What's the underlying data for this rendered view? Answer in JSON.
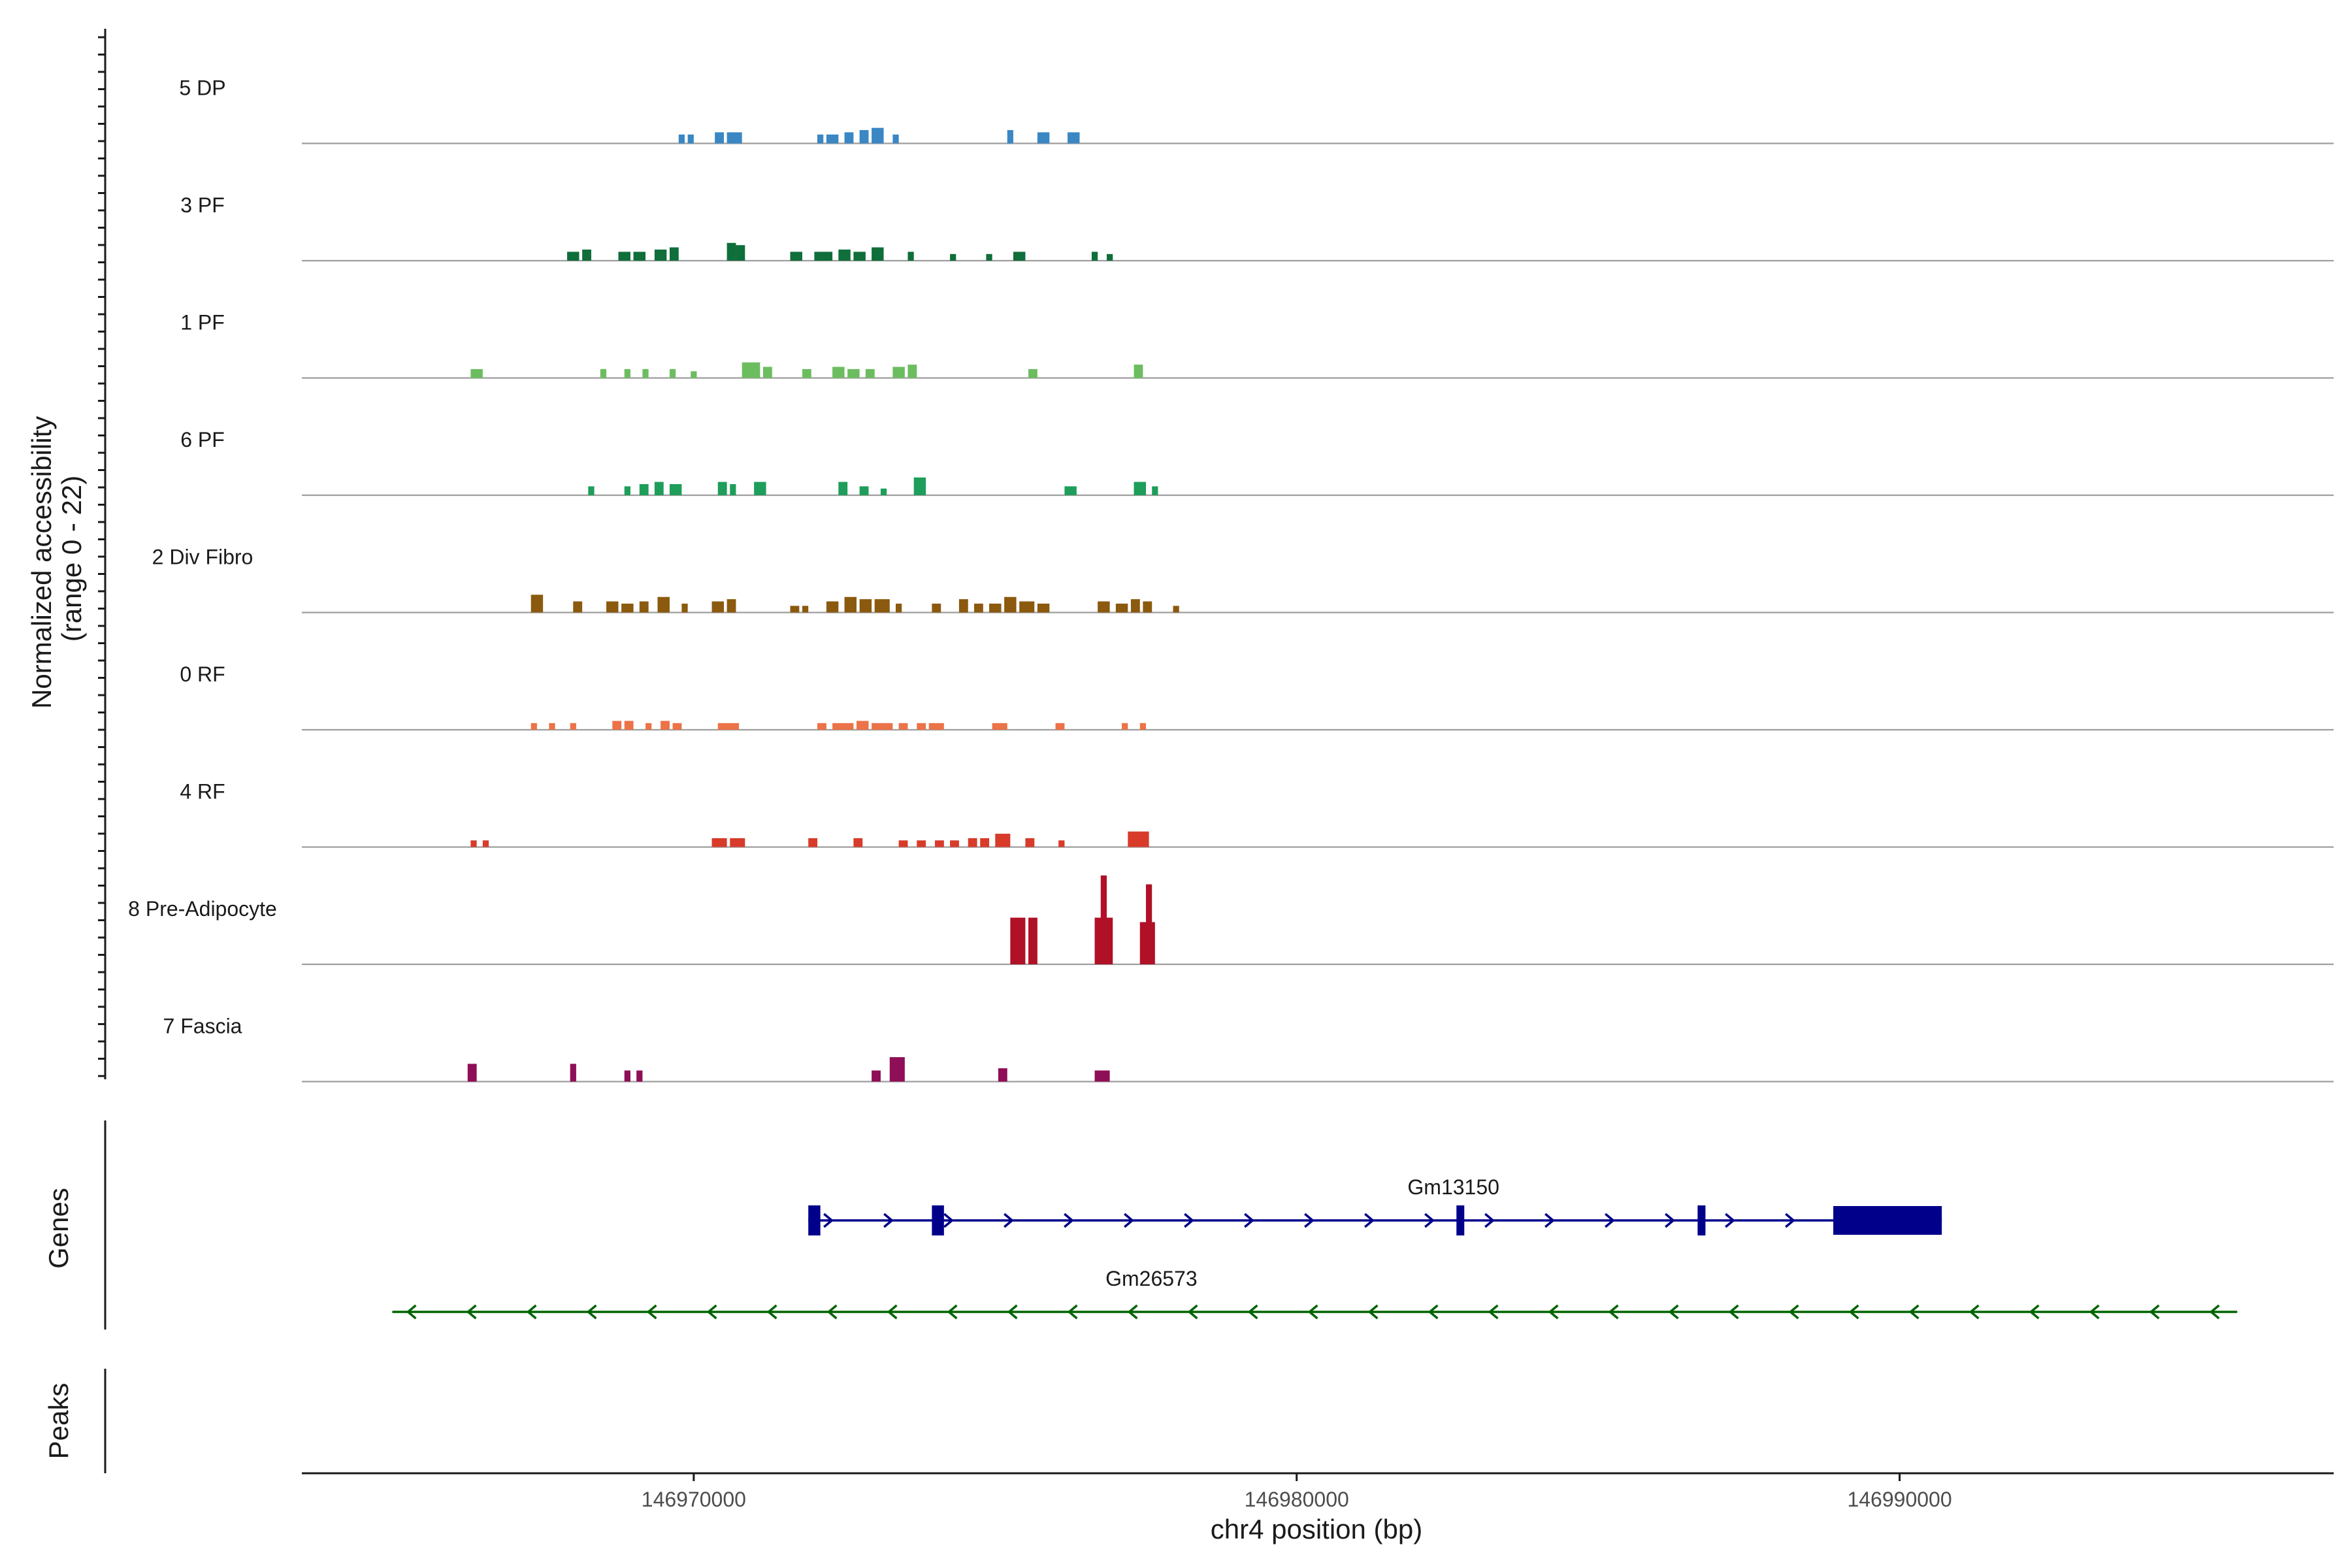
{
  "chart_data": {
    "type": "area",
    "title": "",
    "chromosome": "chr4",
    "xlabel": "chr4 position (bp)",
    "ylabel_line1": "Normalized accessibility",
    "ylabel_line2": "(range 0 - 22)",
    "xlim": [
      146963500,
      146997200
    ],
    "ylim": [
      0,
      22
    ],
    "x_ticks": [
      146970000,
      146980000,
      146990000
    ],
    "x_tick_labels": [
      "146970000",
      "146980000",
      "146990000"
    ],
    "grid": false,
    "legend": "none",
    "panel_labels": {
      "genes": "Genes",
      "peaks": "Peaks"
    },
    "tracks": [
      {
        "label": "5 DP",
        "color": "#3a87c4",
        "peaks": [
          [
            146969750,
            146969850,
            2
          ],
          [
            146969900,
            146970000,
            2
          ],
          [
            146970350,
            146970500,
            2.5
          ],
          [
            146970550,
            146970800,
            2.5
          ],
          [
            146972050,
            146972150,
            2
          ],
          [
            146972200,
            146972400,
            2
          ],
          [
            146972500,
            146972650,
            2.5
          ],
          [
            146972750,
            146972900,
            3
          ],
          [
            146972950,
            146973150,
            3.5
          ],
          [
            146973300,
            146973400,
            2
          ],
          [
            146975200,
            146975300,
            3
          ],
          [
            146975700,
            146975900,
            2.5
          ],
          [
            146976200,
            146976400,
            2.5
          ]
        ]
      },
      {
        "label": "3 PF",
        "color": "#0f6e3a",
        "peaks": [
          [
            146967900,
            146968100,
            2
          ],
          [
            146968150,
            146968300,
            2.5
          ],
          [
            146968750,
            146968950,
            2
          ],
          [
            146969000,
            146969200,
            2
          ],
          [
            146969350,
            146969550,
            2.5
          ],
          [
            146969600,
            146969750,
            3
          ],
          [
            146970550,
            146970700,
            4
          ],
          [
            146970700,
            146970850,
            3.5
          ],
          [
            146971600,
            146971800,
            2
          ],
          [
            146972000,
            146972300,
            2
          ],
          [
            146972400,
            146972600,
            2.5
          ],
          [
            146972650,
            146972850,
            2
          ],
          [
            146972950,
            146973150,
            3
          ],
          [
            146973550,
            146973650,
            2
          ],
          [
            146974250,
            146974350,
            1.5
          ],
          [
            146974850,
            146974950,
            1.5
          ],
          [
            146975300,
            146975500,
            2
          ],
          [
            146976600,
            146976700,
            2
          ],
          [
            146976850,
            146976950,
            1.5
          ]
        ]
      },
      {
        "label": "1 PF",
        "color": "#6cbd5f",
        "peaks": [
          [
            146966300,
            146966500,
            2
          ],
          [
            146968450,
            146968550,
            2
          ],
          [
            146968850,
            146968950,
            2
          ],
          [
            146969150,
            146969250,
            2
          ],
          [
            146969600,
            146969700,
            2
          ],
          [
            146969950,
            146970050,
            1.5
          ],
          [
            146970800,
            146971100,
            3.5
          ],
          [
            146971150,
            146971300,
            2.5
          ],
          [
            146971800,
            146971950,
            2
          ],
          [
            146972300,
            146972500,
            2.5
          ],
          [
            146972550,
            146972750,
            2
          ],
          [
            146972850,
            146973000,
            2
          ],
          [
            146973300,
            146973500,
            2.5
          ],
          [
            146973550,
            146973700,
            3
          ],
          [
            146975550,
            146975700,
            2
          ],
          [
            146977300,
            146977450,
            3
          ]
        ]
      },
      {
        "label": "6 PF",
        "color": "#1e9e5a",
        "peaks": [
          [
            146968250,
            146968350,
            2
          ],
          [
            146968850,
            146968950,
            2
          ],
          [
            146969100,
            146969250,
            2.5
          ],
          [
            146969350,
            146969500,
            3
          ],
          [
            146969600,
            146969800,
            2.5
          ],
          [
            146970400,
            146970550,
            3
          ],
          [
            146970600,
            146970700,
            2.5
          ],
          [
            146971000,
            146971200,
            3
          ],
          [
            146972400,
            146972550,
            3
          ],
          [
            146972750,
            146972900,
            2
          ],
          [
            146973100,
            146973200,
            1.5
          ],
          [
            146973650,
            146973850,
            4
          ],
          [
            146976150,
            146976350,
            2
          ],
          [
            146977300,
            146977500,
            3
          ],
          [
            146977600,
            146977700,
            2
          ]
        ]
      },
      {
        "label": "2 Div Fibro",
        "color": "#8b5a0f",
        "peaks": [
          [
            146967300,
            146967500,
            4
          ],
          [
            146968000,
            146968150,
            2.5
          ],
          [
            146968550,
            146968750,
            2.5
          ],
          [
            146968800,
            146969000,
            2
          ],
          [
            146969100,
            146969250,
            2.5
          ],
          [
            146969400,
            146969600,
            3.5
          ],
          [
            146969800,
            146969900,
            2
          ],
          [
            146970300,
            146970500,
            2.5
          ],
          [
            146970550,
            146970700,
            3
          ],
          [
            146971600,
            146971750,
            1.5
          ],
          [
            146971800,
            146971900,
            1.5
          ],
          [
            146972200,
            146972400,
            2.5
          ],
          [
            146972500,
            146972700,
            3.5
          ],
          [
            146972750,
            146972950,
            3
          ],
          [
            146973000,
            146973250,
            3
          ],
          [
            146973350,
            146973450,
            2
          ],
          [
            146973950,
            146974100,
            2
          ],
          [
            146974400,
            146974550,
            3
          ],
          [
            146974650,
            146974800,
            2
          ],
          [
            146974900,
            146975100,
            2
          ],
          [
            146975150,
            146975350,
            3.5
          ],
          [
            146975400,
            146975650,
            2.5
          ],
          [
            146975700,
            146975900,
            2
          ],
          [
            146976700,
            146976900,
            2.5
          ],
          [
            146977000,
            146977200,
            2
          ],
          [
            146977250,
            146977400,
            3
          ],
          [
            146977450,
            146977600,
            2.5
          ],
          [
            146977950,
            146978050,
            1.5
          ]
        ]
      },
      {
        "label": "0 RF",
        "color": "#ec7248",
        "peaks": [
          [
            146967300,
            146967400,
            1.5
          ],
          [
            146967600,
            146967700,
            1.5
          ],
          [
            146967950,
            146968050,
            1.5
          ],
          [
            146968650,
            146968800,
            2
          ],
          [
            146968850,
            146969000,
            2
          ],
          [
            146969200,
            146969300,
            1.5
          ],
          [
            146969450,
            146969600,
            2
          ],
          [
            146969650,
            146969800,
            1.5
          ],
          [
            146970400,
            146970750,
            1.5
          ],
          [
            146972050,
            146972200,
            1.5
          ],
          [
            146972300,
            146972650,
            1.5
          ],
          [
            146972700,
            146972900,
            2
          ],
          [
            146972950,
            146973300,
            1.5
          ],
          [
            146973400,
            146973550,
            1.5
          ],
          [
            146973700,
            146973850,
            1.5
          ],
          [
            146973900,
            146974150,
            1.5
          ],
          [
            146974950,
            146975200,
            1.5
          ],
          [
            146976000,
            146976150,
            1.5
          ],
          [
            146977100,
            146977200,
            1.5
          ],
          [
            146977400,
            146977500,
            1.5
          ]
        ]
      },
      {
        "label": "4 RF",
        "color": "#d83b2a",
        "peaks": [
          [
            146966300,
            146966400,
            1.5
          ],
          [
            146966500,
            146966600,
            1.5
          ],
          [
            146970300,
            146970550,
            2
          ],
          [
            146970600,
            146970850,
            2
          ],
          [
            146971900,
            146972050,
            2
          ],
          [
            146972650,
            146972800,
            2
          ],
          [
            146973400,
            146973550,
            1.5
          ],
          [
            146973700,
            146973850,
            1.5
          ],
          [
            146974000,
            146974150,
            1.5
          ],
          [
            146974250,
            146974400,
            1.5
          ],
          [
            146974550,
            146974700,
            2
          ],
          [
            146974750,
            146974900,
            2
          ],
          [
            146975000,
            146975250,
            3
          ],
          [
            146975500,
            146975650,
            2
          ],
          [
            146976050,
            146976150,
            1.5
          ],
          [
            146977200,
            146977550,
            3.5
          ]
        ]
      },
      {
        "label": "8 Pre-Adipocyte",
        "color": "#b01127",
        "peaks": [
          [
            146975250,
            146975500,
            10.5
          ],
          [
            146975550,
            146975700,
            10.5
          ],
          [
            146976650,
            146976950,
            10.5
          ],
          [
            146976750,
            146976850,
            20
          ],
          [
            146977400,
            146977650,
            9.5
          ],
          [
            146977500,
            146977600,
            18
          ]
        ]
      },
      {
        "label": "7 Fascia",
        "color": "#8e0e57",
        "peaks": [
          [
            146966250,
            146966400,
            4
          ],
          [
            146967950,
            146968050,
            4
          ],
          [
            146968850,
            146968950,
            2.5
          ],
          [
            146969050,
            146969150,
            2.5
          ],
          [
            146972950,
            146973100,
            2.5
          ],
          [
            146973250,
            146973500,
            5.5
          ],
          [
            146975050,
            146975200,
            3
          ],
          [
            146976650,
            146976900,
            2.5
          ]
        ]
      }
    ],
    "genes": [
      {
        "name": "Gm13150",
        "strand": "+",
        "color": "#00008b",
        "start": 146971900,
        "end": 146990700,
        "exons": [
          [
            146971900,
            146972100,
            "small"
          ],
          [
            146973950,
            146974150,
            "small"
          ],
          [
            146982650,
            146982750,
            "small"
          ],
          [
            146986650,
            146986750,
            "small"
          ],
          [
            146988900,
            146990700,
            "large"
          ]
        ]
      },
      {
        "name": "Gm26573",
        "strand": "-",
        "color": "#006400",
        "start": 146965000,
        "end": 146995600,
        "exons": []
      }
    ]
  }
}
